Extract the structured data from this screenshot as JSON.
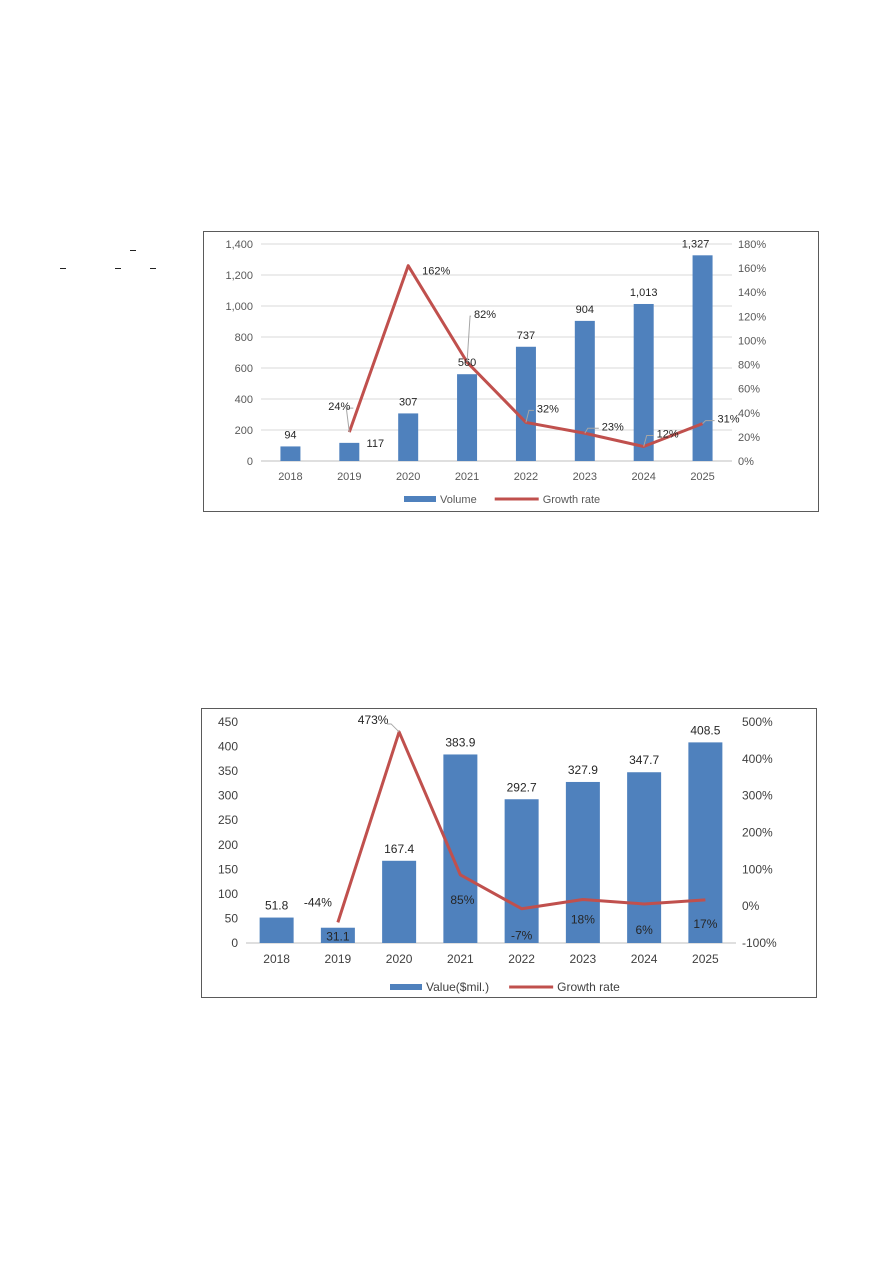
{
  "chart_data": [
    {
      "type": "bar",
      "categories": [
        "2018",
        "2019",
        "2020",
        "2021",
        "2022",
        "2023",
        "2024",
        "2025"
      ],
      "series": [
        {
          "name": "Volume",
          "type": "bar",
          "axis": "left",
          "values": [
            94,
            117,
            307,
            560,
            737,
            904,
            1013,
            1327
          ],
          "labels": [
            "94",
            "117",
            "307",
            "560",
            "737",
            "904",
            "1,013",
            "1,327"
          ],
          "color": "#4f81bd"
        },
        {
          "name": "Growth rate",
          "type": "line",
          "axis": "right",
          "values": [
            null,
            24,
            162,
            82,
            32,
            23,
            12,
            31
          ],
          "labels": [
            "",
            "24%",
            "162%",
            "82%",
            "32%",
            "23%",
            "12%",
            "31%"
          ],
          "color": "#c0504d"
        }
      ],
      "y_left": {
        "min": 0,
        "max": 1400,
        "ticks": [
          "0",
          "200",
          "400",
          "600",
          "800",
          "1,000",
          "1,200",
          "1,400"
        ]
      },
      "y_right": {
        "min": 0,
        "max": 180,
        "ticks": [
          "0%",
          "20%",
          "40%",
          "60%",
          "80%",
          "100%",
          "120%",
          "140%",
          "160%",
          "180%"
        ]
      },
      "grid": true,
      "legend": "bottom"
    },
    {
      "type": "bar",
      "categories": [
        "2018",
        "2019",
        "2020",
        "2021",
        "2022",
        "2023",
        "2024",
        "2025"
      ],
      "series": [
        {
          "name": "Value($mil.)",
          "type": "bar",
          "axis": "left",
          "values": [
            51.8,
            31.1,
            167.4,
            383.9,
            292.7,
            327.9,
            347.7,
            408.5
          ],
          "labels": [
            "51.8",
            "31.1",
            "167.4",
            "383.9",
            "292.7",
            "327.9",
            "347.7",
            "408.5"
          ],
          "color": "#4f81bd"
        },
        {
          "name": "Growth rate",
          "type": "line",
          "axis": "right",
          "values": [
            null,
            -44,
            473,
            85,
            -7,
            18,
            6,
            17
          ],
          "labels": [
            "",
            "-44%",
            "473%",
            "85%",
            "-7%",
            "18%",
            "6%",
            "17%"
          ],
          "color": "#c0504d"
        }
      ],
      "y_left": {
        "min": 0,
        "max": 450,
        "ticks": [
          "0",
          "50",
          "100",
          "150",
          "200",
          "250",
          "300",
          "350",
          "400",
          "450"
        ]
      },
      "y_right": {
        "min": -100,
        "max": 500,
        "ticks": [
          "-100%",
          "0%",
          "100%",
          "200%",
          "300%",
          "400%",
          "500%"
        ]
      },
      "grid": false,
      "legend": "bottom"
    }
  ]
}
